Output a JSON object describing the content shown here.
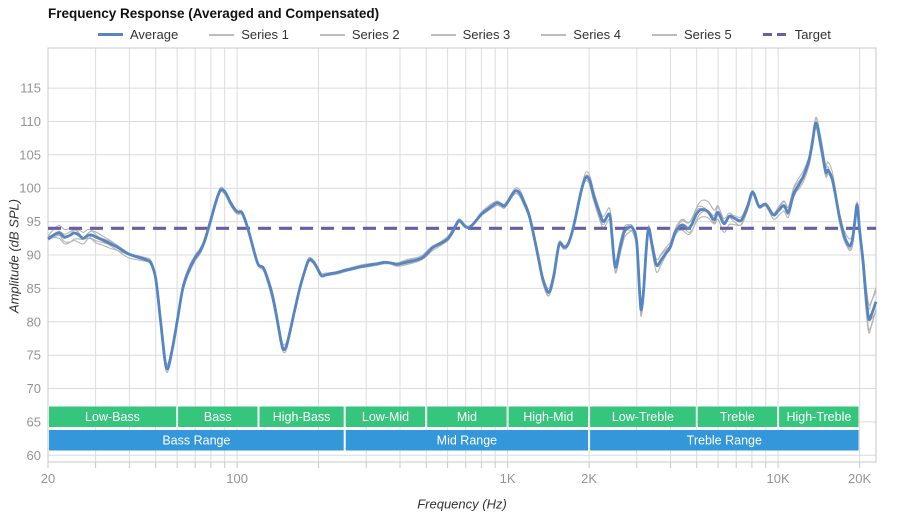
{
  "title": "Frequency Response (Averaged and Compensated)",
  "axes": {
    "y_label": "Amplitude (dB SPL)",
    "x_label": "Frequency (Hz)"
  },
  "legend": [
    {
      "key": "average",
      "label": "Average",
      "style": "solid-thick"
    },
    {
      "key": "series-1",
      "label": "Series 1",
      "style": "solid-thin"
    },
    {
      "key": "series-2",
      "label": "Series 2",
      "style": "solid-thin"
    },
    {
      "key": "series-3",
      "label": "Series 3",
      "style": "solid-thin"
    },
    {
      "key": "series-4",
      "label": "Series 4",
      "style": "solid-thin"
    },
    {
      "key": "series-5",
      "label": "Series 5",
      "style": "solid-thin"
    },
    {
      "key": "target",
      "label": "Target",
      "style": "dashed"
    }
  ],
  "colors": {
    "average": "#5585c2",
    "series": "#b4b4b4",
    "target": "#6b5fa3",
    "band_green": "#36c57d",
    "band_blue": "#3397da",
    "grid": "#dcdcdc",
    "border": "#c8c8c8",
    "tick_text": "#949494",
    "text": "#333333"
  },
  "bands": {
    "green_row": [
      {
        "label": "Low-Bass",
        "from": 20,
        "to": 60
      },
      {
        "label": "Bass",
        "from": 60,
        "to": 120
      },
      {
        "label": "High-Bass",
        "from": 120,
        "to": 250
      },
      {
        "label": "Low-Mid",
        "from": 250,
        "to": 500
      },
      {
        "label": "Mid",
        "from": 500,
        "to": 1000
      },
      {
        "label": "High-Mid",
        "from": 1000,
        "to": 2000
      },
      {
        "label": "Low-Treble",
        "from": 2000,
        "to": 5000
      },
      {
        "label": "Treble",
        "from": 5000,
        "to": 10000
      },
      {
        "label": "High-Treble",
        "from": 10000,
        "to": 20000
      }
    ],
    "blue_row": [
      {
        "label": "Bass Range",
        "from": 20,
        "to": 250
      },
      {
        "label": "Mid Range",
        "from": 250,
        "to": 2000
      },
      {
        "label": "Treble Range",
        "from": 2000,
        "to": 20000
      }
    ]
  },
  "chart_data": {
    "type": "line",
    "title": "Frequency Response (Averaged and Compensated)",
    "xlabel": "Frequency (Hz)",
    "ylabel": "Amplitude (dB SPL)",
    "x_scale": "log",
    "x_range": [
      20,
      23000
    ],
    "y_range": [
      59,
      121
    ],
    "grid": true,
    "legend_position": "top",
    "x_ticks": [
      {
        "f": 20,
        "label": "20"
      },
      {
        "f": 100,
        "label": "100"
      },
      {
        "f": 1000,
        "label": "1K"
      },
      {
        "f": 2000,
        "label": "2K"
      },
      {
        "f": 10000,
        "label": "10K"
      },
      {
        "f": 20000,
        "label": "20K"
      }
    ],
    "x_gridlines": [
      20,
      30,
      40,
      50,
      60,
      70,
      80,
      90,
      100,
      200,
      300,
      400,
      500,
      600,
      700,
      800,
      900,
      1000,
      2000,
      3000,
      4000,
      5000,
      6000,
      7000,
      8000,
      9000,
      10000,
      20000
    ],
    "y_ticks": [
      60,
      65,
      70,
      75,
      80,
      85,
      90,
      95,
      100,
      105,
      110,
      115
    ],
    "target_db": 94,
    "series_names": [
      "Series 1",
      "Series 2",
      "Series 3",
      "Series 4",
      "Series 5"
    ],
    "series_note": "five measurement passes hugging the average within +/- spread",
    "average_points": [
      [
        20,
        92.4,
        1.3
      ],
      [
        21,
        93.0,
        1.3
      ],
      [
        22,
        93.3,
        1.3
      ],
      [
        23,
        92.7,
        1.2
      ],
      [
        24,
        92.9,
        1.2
      ],
      [
        25,
        93.3,
        1.2
      ],
      [
        26,
        93.0,
        1.2
      ],
      [
        27,
        92.5,
        1.1
      ],
      [
        28,
        92.9,
        1.1
      ],
      [
        29,
        93.0,
        1.0
      ],
      [
        30,
        92.7,
        1.0
      ],
      [
        32,
        92.2,
        0.8
      ],
      [
        34,
        91.7,
        0.8
      ],
      [
        36,
        91.2,
        0.7
      ],
      [
        38,
        90.6,
        0.7
      ],
      [
        40,
        90.1,
        0.7
      ],
      [
        43,
        89.7,
        0.7
      ],
      [
        46,
        89.3,
        0.7
      ],
      [
        48,
        88.8,
        0.8
      ],
      [
        50,
        86.5,
        0.9
      ],
      [
        52,
        80.5,
        1.0
      ],
      [
        54,
        74.5,
        1.0
      ],
      [
        55,
        73.0,
        1.0
      ],
      [
        56,
        73.5,
        1.0
      ],
      [
        58,
        76.5,
        1.0
      ],
      [
        60,
        80.0,
        0.9
      ],
      [
        63,
        85.0,
        0.8
      ],
      [
        66,
        87.5,
        0.6
      ],
      [
        70,
        89.6,
        0.5
      ],
      [
        73,
        90.6,
        0.5
      ],
      [
        76,
        92.2,
        0.5
      ],
      [
        80,
        95.3,
        0.5
      ],
      [
        83,
        97.6,
        0.5
      ],
      [
        86,
        99.4,
        0.5
      ],
      [
        88,
        99.8,
        0.5
      ],
      [
        91,
        99.2,
        0.5
      ],
      [
        95,
        97.7,
        0.5
      ],
      [
        100,
        96.5,
        0.5
      ],
      [
        104,
        96.4,
        0.6
      ],
      [
        108,
        94.8,
        0.6
      ],
      [
        112,
        92.6,
        0.7
      ],
      [
        116,
        90.3,
        0.7
      ],
      [
        120,
        88.5,
        0.7
      ],
      [
        125,
        88.1,
        0.7
      ],
      [
        130,
        86.3,
        0.7
      ],
      [
        135,
        84.0,
        0.8
      ],
      [
        140,
        80.8,
        0.8
      ],
      [
        145,
        77.3,
        0.8
      ],
      [
        148,
        75.9,
        0.8
      ],
      [
        152,
        76.3,
        0.8
      ],
      [
        157,
        78.6,
        0.7
      ],
      [
        163,
        81.6,
        0.6
      ],
      [
        170,
        84.8,
        0.5
      ],
      [
        177,
        87.3,
        0.4
      ],
      [
        184,
        89.2,
        0.4
      ],
      [
        191,
        89.0,
        0.4
      ],
      [
        198,
        88.0,
        0.4
      ],
      [
        205,
        86.9,
        0.4
      ],
      [
        212,
        87.0,
        0.4
      ],
      [
        222,
        87.2,
        0.4
      ],
      [
        235,
        87.4,
        0.4
      ],
      [
        250,
        87.7,
        0.4
      ],
      [
        270,
        88.0,
        0.4
      ],
      [
        290,
        88.3,
        0.4
      ],
      [
        310,
        88.5,
        0.4
      ],
      [
        330,
        88.7,
        0.4
      ],
      [
        350,
        88.9,
        0.4
      ],
      [
        370,
        88.8,
        0.4
      ],
      [
        390,
        88.6,
        0.4
      ],
      [
        410,
        88.8,
        0.4
      ],
      [
        430,
        89.0,
        0.4
      ],
      [
        455,
        89.2,
        0.4
      ],
      [
        480,
        89.5,
        0.4
      ],
      [
        500,
        90.1,
        0.45
      ],
      [
        525,
        91.0,
        0.45
      ],
      [
        550,
        91.5,
        0.45
      ],
      [
        575,
        91.9,
        0.45
      ],
      [
        600,
        92.4,
        0.45
      ],
      [
        625,
        93.4,
        0.45
      ],
      [
        645,
        94.5,
        0.45
      ],
      [
        660,
        95.1,
        0.45
      ],
      [
        675,
        94.9,
        0.45
      ],
      [
        695,
        94.3,
        0.45
      ],
      [
        715,
        94.1,
        0.45
      ],
      [
        740,
        94.5,
        0.45
      ],
      [
        770,
        95.3,
        0.45
      ],
      [
        800,
        96.1,
        0.45
      ],
      [
        840,
        96.8,
        0.45
      ],
      [
        880,
        97.4,
        0.45
      ],
      [
        915,
        97.8,
        0.45
      ],
      [
        945,
        97.6,
        0.45
      ],
      [
        970,
        97.3,
        0.45
      ],
      [
        1000,
        97.9,
        0.5
      ],
      [
        1030,
        98.8,
        0.5
      ],
      [
        1070,
        99.6,
        0.5
      ],
      [
        1110,
        99.2,
        0.6
      ],
      [
        1150,
        97.9,
        0.6
      ],
      [
        1200,
        96.0,
        0.6
      ],
      [
        1250,
        92.9,
        0.7
      ],
      [
        1300,
        89.6,
        0.8
      ],
      [
        1350,
        86.4,
        0.9
      ],
      [
        1420,
        84.4,
        1.0
      ],
      [
        1480,
        86.8,
        1.0
      ],
      [
        1530,
        90.5,
        0.7
      ],
      [
        1560,
        91.8,
        0.6
      ],
      [
        1610,
        91.2,
        0.6
      ],
      [
        1660,
        91.4,
        0.6
      ],
      [
        1720,
        93.0,
        0.6
      ],
      [
        1780,
        95.5,
        0.6
      ],
      [
        1840,
        98.3,
        0.7
      ],
      [
        1900,
        100.6,
        0.8
      ],
      [
        1950,
        101.7,
        0.8
      ],
      [
        2010,
        101.2,
        0.8
      ],
      [
        2080,
        98.9,
        0.9
      ],
      [
        2170,
        96.7,
        1.0
      ],
      [
        2260,
        95.0,
        1.1
      ],
      [
        2380,
        96.1,
        1.1
      ],
      [
        2430,
        93.0,
        1.2
      ],
      [
        2500,
        88.2,
        1.3
      ],
      [
        2600,
        91.0,
        1.2
      ],
      [
        2700,
        93.5,
        1.0
      ],
      [
        2800,
        94.1,
        0.9
      ],
      [
        2900,
        94.0,
        0.9
      ],
      [
        3000,
        91.9,
        1.2
      ],
      [
        3080,
        84.0,
        1.6
      ],
      [
        3120,
        81.8,
        1.7
      ],
      [
        3180,
        84.5,
        1.6
      ],
      [
        3250,
        90.5,
        1.4
      ],
      [
        3320,
        94.0,
        1.2
      ],
      [
        3420,
        91.5,
        1.3
      ],
      [
        3550,
        88.5,
        1.4
      ],
      [
        3700,
        89.3,
        1.2
      ],
      [
        3850,
        90.3,
        1.1
      ],
      [
        4000,
        91.3,
        1.0
      ],
      [
        4150,
        93.3,
        1.0
      ],
      [
        4300,
        94.2,
        1.0
      ],
      [
        4450,
        94.5,
        1.0
      ],
      [
        4650,
        94.0,
        1.0
      ],
      [
        4800,
        94.6,
        1.2
      ],
      [
        5000,
        96.2,
        1.4
      ],
      [
        5200,
        96.8,
        1.5
      ],
      [
        5500,
        96.5,
        1.6
      ],
      [
        5800,
        95.3,
        1.7
      ],
      [
        6000,
        96.4,
        1.6
      ],
      [
        6300,
        94.7,
        1.6
      ],
      [
        6600,
        95.8,
        1.5
      ],
      [
        6900,
        95.5,
        1.4
      ],
      [
        7300,
        95.2,
        1.3
      ],
      [
        7700,
        97.2,
        1.1
      ],
      [
        8050,
        99.4,
        1.1
      ],
      [
        8500,
        97.3,
        1.0
      ],
      [
        9000,
        97.6,
        0.9
      ],
      [
        9600,
        96.0,
        0.9
      ],
      [
        10000,
        96.6,
        0.9
      ],
      [
        10500,
        97.4,
        0.9
      ],
      [
        10900,
        96.4,
        0.9
      ],
      [
        11400,
        99.1,
        1.0
      ],
      [
        12000,
        100.7,
        1.1
      ],
      [
        12400,
        101.8,
        1.1
      ],
      [
        13000,
        104.2,
        1.1
      ],
      [
        13400,
        107.0,
        1.1
      ],
      [
        13800,
        109.8,
        1.0
      ],
      [
        14300,
        107.0,
        1.2
      ],
      [
        14600,
        105.0,
        1.3
      ],
      [
        15000,
        102.4,
        1.4
      ],
      [
        15300,
        102.7,
        1.4
      ],
      [
        15800,
        101.5,
        1.4
      ],
      [
        16200,
        99.5,
        1.4
      ],
      [
        16500,
        97.7,
        1.4
      ],
      [
        16900,
        95.5,
        1.5
      ],
      [
        17500,
        93.0,
        1.5
      ],
      [
        18000,
        91.8,
        1.5
      ],
      [
        18400,
        91.4,
        1.5
      ],
      [
        18800,
        92.2,
        1.5
      ],
      [
        19200,
        95.0,
        1.6
      ],
      [
        19600,
        97.5,
        1.7
      ],
      [
        20000,
        93.7,
        1.7
      ],
      [
        20600,
        89.0,
        2.0
      ],
      [
        21100,
        84.0,
        2.2
      ],
      [
        21600,
        80.5,
        2.3
      ],
      [
        22100,
        81.0,
        2.3
      ],
      [
        23000,
        83.0,
        2.4
      ]
    ]
  }
}
